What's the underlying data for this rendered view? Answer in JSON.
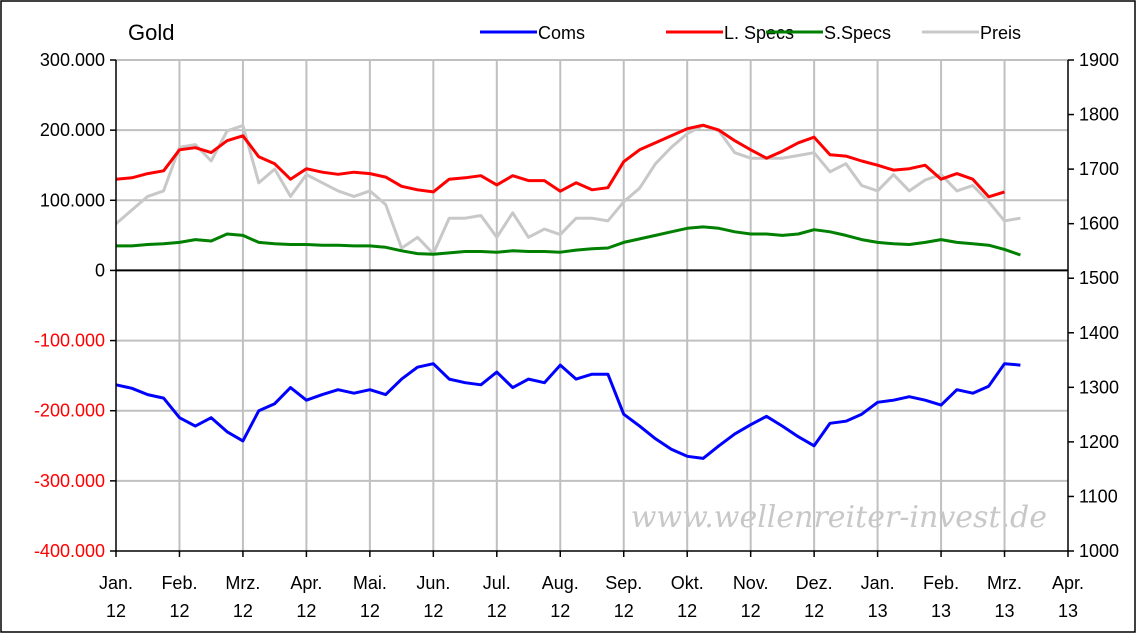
{
  "chart_data": {
    "type": "line",
    "title": "Gold",
    "watermark": "www.wellenreiter-invest.de",
    "grid": true,
    "legend": {
      "placement": "top-right",
      "entries": [
        {
          "name": "Coms",
          "color": "#0000ff"
        },
        {
          "name": "L. Specs",
          "color": "#ff0000"
        },
        {
          "name": "S.Specs",
          "color": "#008000"
        },
        {
          "name": "Preis",
          "color": "#c8c8c8"
        }
      ]
    },
    "x_axis": {
      "unit": "months since Jan 2012",
      "range": [
        0,
        15
      ],
      "ticks": [
        {
          "top": "Jan.",
          "bottom": "12"
        },
        {
          "top": "Feb.",
          "bottom": "12"
        },
        {
          "top": "Mrz.",
          "bottom": "12"
        },
        {
          "top": "Apr.",
          "bottom": "12"
        },
        {
          "top": "Mai.",
          "bottom": "12"
        },
        {
          "top": "Jun.",
          "bottom": "12"
        },
        {
          "top": "Jul.",
          "bottom": "12"
        },
        {
          "top": "Aug.",
          "bottom": "12"
        },
        {
          "top": "Sep.",
          "bottom": "12"
        },
        {
          "top": "Okt.",
          "bottom": "12"
        },
        {
          "top": "Nov.",
          "bottom": "12"
        },
        {
          "top": "Dez.",
          "bottom": "12"
        },
        {
          "top": "Jan.",
          "bottom": "13"
        },
        {
          "top": "Feb.",
          "bottom": "13"
        },
        {
          "top": "Mrz.",
          "bottom": "13"
        },
        {
          "top": "Apr.",
          "bottom": "13"
        }
      ]
    },
    "y_left": {
      "range": [
        -400000,
        300000
      ],
      "ticks": [
        {
          "value": 300000,
          "label": "300.000",
          "color": "#000000"
        },
        {
          "value": 200000,
          "label": "200.000",
          "color": "#000000"
        },
        {
          "value": 100000,
          "label": "100.000",
          "color": "#000000"
        },
        {
          "value": 0,
          "label": "0",
          "color": "#000000"
        },
        {
          "value": -100000,
          "label": "-100.000",
          "color": "#ff0000"
        },
        {
          "value": -200000,
          "label": "-200.000",
          "color": "#ff0000"
        },
        {
          "value": -300000,
          "label": "-300.000",
          "color": "#ff0000"
        },
        {
          "value": -400000,
          "label": "-400.000",
          "color": "#ff0000"
        }
      ]
    },
    "y_right": {
      "range": [
        1000,
        1900
      ],
      "ticks": [
        {
          "value": 1900,
          "label": "1900"
        },
        {
          "value": 1800,
          "label": "1800"
        },
        {
          "value": 1700,
          "label": "1700"
        },
        {
          "value": 1600,
          "label": "1600"
        },
        {
          "value": 1500,
          "label": "1500"
        },
        {
          "value": 1400,
          "label": "1400"
        },
        {
          "value": 1300,
          "label": "1300"
        },
        {
          "value": 1200,
          "label": "1200"
        },
        {
          "value": 1100,
          "label": "1100"
        },
        {
          "value": 1000,
          "label": "1000"
        }
      ]
    },
    "series": [
      {
        "name": "Preis",
        "axis": "right",
        "color": "#c8c8c8",
        "points": [
          [
            0.0,
            1600
          ],
          [
            0.25,
            1625
          ],
          [
            0.5,
            1650
          ],
          [
            0.75,
            1660
          ],
          [
            1.0,
            1740
          ],
          [
            1.25,
            1745
          ],
          [
            1.5,
            1715
          ],
          [
            1.75,
            1770
          ],
          [
            2.0,
            1780
          ],
          [
            2.25,
            1675
          ],
          [
            2.5,
            1700
          ],
          [
            2.75,
            1650
          ],
          [
            3.0,
            1690
          ],
          [
            3.25,
            1675
          ],
          [
            3.5,
            1660
          ],
          [
            3.75,
            1650
          ],
          [
            4.0,
            1660
          ],
          [
            4.25,
            1635
          ],
          [
            4.5,
            1555
          ],
          [
            4.75,
            1575
          ],
          [
            5.0,
            1545
          ],
          [
            5.25,
            1610
          ],
          [
            5.5,
            1610
          ],
          [
            5.75,
            1615
          ],
          [
            6.0,
            1575
          ],
          [
            6.25,
            1620
          ],
          [
            6.5,
            1575
          ],
          [
            6.75,
            1590
          ],
          [
            7.0,
            1580
          ],
          [
            7.25,
            1610
          ],
          [
            7.5,
            1610
          ],
          [
            7.75,
            1605
          ],
          [
            8.0,
            1640
          ],
          [
            8.25,
            1665
          ],
          [
            8.5,
            1710
          ],
          [
            8.75,
            1740
          ],
          [
            9.0,
            1765
          ],
          [
            9.25,
            1780
          ],
          [
            9.5,
            1770
          ],
          [
            9.75,
            1730
          ],
          [
            10.0,
            1720
          ],
          [
            10.25,
            1720
          ],
          [
            10.5,
            1720
          ],
          [
            10.75,
            1725
          ],
          [
            11.0,
            1730
          ],
          [
            11.25,
            1695
          ],
          [
            11.5,
            1710
          ],
          [
            11.75,
            1670
          ],
          [
            12.0,
            1660
          ],
          [
            12.25,
            1690
          ],
          [
            12.5,
            1660
          ],
          [
            12.75,
            1680
          ],
          [
            13.0,
            1690
          ],
          [
            13.25,
            1660
          ],
          [
            13.5,
            1670
          ],
          [
            13.75,
            1640
          ],
          [
            14.0,
            1605
          ],
          [
            14.25,
            1610
          ]
        ]
      },
      {
        "name": "S.Specs",
        "axis": "left",
        "color": "#008000",
        "points": [
          [
            0.0,
            35000
          ],
          [
            0.25,
            35000
          ],
          [
            0.5,
            37000
          ],
          [
            0.75,
            38000
          ],
          [
            1.0,
            40000
          ],
          [
            1.25,
            44000
          ],
          [
            1.5,
            42000
          ],
          [
            1.75,
            52000
          ],
          [
            2.0,
            50000
          ],
          [
            2.25,
            40000
          ],
          [
            2.5,
            38000
          ],
          [
            2.75,
            37000
          ],
          [
            3.0,
            37000
          ],
          [
            3.25,
            36000
          ],
          [
            3.5,
            36000
          ],
          [
            3.75,
            35000
          ],
          [
            4.0,
            35000
          ],
          [
            4.25,
            33000
          ],
          [
            4.5,
            28000
          ],
          [
            4.75,
            24000
          ],
          [
            5.0,
            23000
          ],
          [
            5.25,
            25000
          ],
          [
            5.5,
            27000
          ],
          [
            5.75,
            27000
          ],
          [
            6.0,
            26000
          ],
          [
            6.25,
            28000
          ],
          [
            6.5,
            27000
          ],
          [
            6.75,
            27000
          ],
          [
            7.0,
            26000
          ],
          [
            7.25,
            29000
          ],
          [
            7.5,
            31000
          ],
          [
            7.75,
            32000
          ],
          [
            8.0,
            40000
          ],
          [
            8.25,
            45000
          ],
          [
            8.5,
            50000
          ],
          [
            8.75,
            55000
          ],
          [
            9.0,
            60000
          ],
          [
            9.25,
            62000
          ],
          [
            9.5,
            60000
          ],
          [
            9.75,
            55000
          ],
          [
            10.0,
            52000
          ],
          [
            10.25,
            52000
          ],
          [
            10.5,
            50000
          ],
          [
            10.75,
            52000
          ],
          [
            11.0,
            58000
          ],
          [
            11.25,
            55000
          ],
          [
            11.5,
            50000
          ],
          [
            11.75,
            44000
          ],
          [
            12.0,
            40000
          ],
          [
            12.25,
            38000
          ],
          [
            12.5,
            37000
          ],
          [
            12.75,
            40000
          ],
          [
            13.0,
            44000
          ],
          [
            13.25,
            40000
          ],
          [
            13.5,
            38000
          ],
          [
            13.75,
            36000
          ],
          [
            14.0,
            30000
          ],
          [
            14.25,
            22000
          ]
        ]
      },
      {
        "name": "L. Specs",
        "axis": "left",
        "color": "#ff0000",
        "points": [
          [
            0.0,
            130000
          ],
          [
            0.25,
            132000
          ],
          [
            0.5,
            138000
          ],
          [
            0.75,
            142000
          ],
          [
            1.0,
            172000
          ],
          [
            1.25,
            175000
          ],
          [
            1.5,
            168000
          ],
          [
            1.75,
            185000
          ],
          [
            2.0,
            192000
          ],
          [
            2.25,
            162000
          ],
          [
            2.5,
            152000
          ],
          [
            2.75,
            130000
          ],
          [
            3.0,
            145000
          ],
          [
            3.25,
            140000
          ],
          [
            3.5,
            137000
          ],
          [
            3.75,
            140000
          ],
          [
            4.0,
            138000
          ],
          [
            4.25,
            133000
          ],
          [
            4.5,
            120000
          ],
          [
            4.75,
            115000
          ],
          [
            5.0,
            112000
          ],
          [
            5.25,
            130000
          ],
          [
            5.5,
            132000
          ],
          [
            5.75,
            135000
          ],
          [
            6.0,
            122000
          ],
          [
            6.25,
            135000
          ],
          [
            6.5,
            128000
          ],
          [
            6.75,
            128000
          ],
          [
            7.0,
            113000
          ],
          [
            7.25,
            125000
          ],
          [
            7.5,
            115000
          ],
          [
            7.75,
            118000
          ],
          [
            8.0,
            155000
          ],
          [
            8.25,
            172000
          ],
          [
            8.5,
            182000
          ],
          [
            8.75,
            192000
          ],
          [
            9.0,
            202000
          ],
          [
            9.25,
            207000
          ],
          [
            9.5,
            200000
          ],
          [
            9.75,
            185000
          ],
          [
            10.0,
            172000
          ],
          [
            10.25,
            160000
          ],
          [
            10.5,
            170000
          ],
          [
            10.75,
            182000
          ],
          [
            11.0,
            190000
          ],
          [
            11.25,
            165000
          ],
          [
            11.5,
            163000
          ],
          [
            11.75,
            156000
          ],
          [
            12.0,
            150000
          ],
          [
            12.25,
            143000
          ],
          [
            12.5,
            145000
          ],
          [
            12.75,
            150000
          ],
          [
            13.0,
            130000
          ],
          [
            13.25,
            138000
          ],
          [
            13.5,
            130000
          ],
          [
            13.75,
            105000
          ],
          [
            14.0,
            112000
          ]
        ]
      },
      {
        "name": "Coms",
        "axis": "left",
        "color": "#0000ff",
        "points": [
          [
            0.0,
            -163000
          ],
          [
            0.25,
            -168000
          ],
          [
            0.5,
            -177000
          ],
          [
            0.75,
            -182000
          ],
          [
            1.0,
            -210000
          ],
          [
            1.25,
            -222000
          ],
          [
            1.5,
            -210000
          ],
          [
            1.75,
            -230000
          ],
          [
            2.0,
            -243000
          ],
          [
            2.25,
            -200000
          ],
          [
            2.5,
            -190000
          ],
          [
            2.75,
            -167000
          ],
          [
            3.0,
            -185000
          ],
          [
            3.25,
            -177000
          ],
          [
            3.5,
            -170000
          ],
          [
            3.75,
            -175000
          ],
          [
            4.0,
            -170000
          ],
          [
            4.25,
            -177000
          ],
          [
            4.5,
            -155000
          ],
          [
            4.75,
            -138000
          ],
          [
            5.0,
            -133000
          ],
          [
            5.25,
            -155000
          ],
          [
            5.5,
            -160000
          ],
          [
            5.75,
            -163000
          ],
          [
            6.0,
            -145000
          ],
          [
            6.25,
            -167000
          ],
          [
            6.5,
            -155000
          ],
          [
            6.75,
            -160000
          ],
          [
            7.0,
            -135000
          ],
          [
            7.25,
            -155000
          ],
          [
            7.5,
            -148000
          ],
          [
            7.75,
            -148000
          ],
          [
            8.0,
            -205000
          ],
          [
            8.25,
            -222000
          ],
          [
            8.5,
            -240000
          ],
          [
            8.75,
            -255000
          ],
          [
            9.0,
            -265000
          ],
          [
            9.25,
            -268000
          ],
          [
            9.5,
            -250000
          ],
          [
            9.75,
            -233000
          ],
          [
            10.0,
            -220000
          ],
          [
            10.25,
            -208000
          ],
          [
            10.5,
            -222000
          ],
          [
            10.75,
            -237000
          ],
          [
            11.0,
            -250000
          ],
          [
            11.25,
            -218000
          ],
          [
            11.5,
            -215000
          ],
          [
            11.75,
            -205000
          ],
          [
            12.0,
            -188000
          ],
          [
            12.25,
            -185000
          ],
          [
            12.5,
            -180000
          ],
          [
            12.75,
            -185000
          ],
          [
            13.0,
            -192000
          ],
          [
            13.25,
            -170000
          ],
          [
            13.5,
            -175000
          ],
          [
            13.75,
            -165000
          ],
          [
            14.0,
            -133000
          ],
          [
            14.25,
            -135000
          ]
        ]
      }
    ]
  }
}
